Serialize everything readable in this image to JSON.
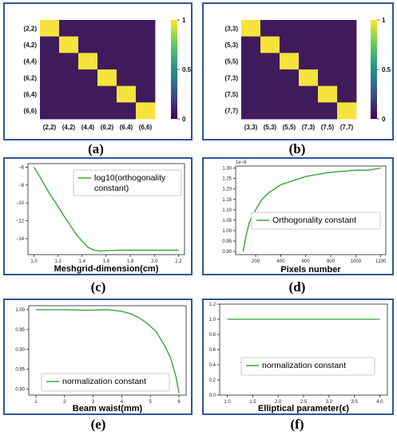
{
  "panels": [
    {
      "caption": "(a)"
    },
    {
      "caption": "(b)"
    },
    {
      "caption": "(c)"
    },
    {
      "caption": "(d)"
    },
    {
      "caption": "(e)"
    },
    {
      "caption": "(f)"
    }
  ],
  "colors": {
    "border": "#2f5597",
    "low": "#3f1b5c",
    "high": "#f6e33d",
    "line": "#2ca02c",
    "cbar": [
      "#440154",
      "#3b528b",
      "#21918c",
      "#5ec962",
      "#fde725"
    ]
  },
  "chart_data": [
    {
      "type": "heatmap",
      "row_labels": [
        "(2,2)",
        "(4,2)",
        "(4,4)",
        "(6,2)",
        "(6,4)",
        "(6,6)"
      ],
      "col_labels": [
        "(2,2)",
        "(4,2)",
        "(4,4)",
        "(6,2)",
        "(6,4)",
        "(6,6)"
      ],
      "values": [
        [
          1,
          0,
          0,
          0,
          0,
          0
        ],
        [
          0,
          1,
          0,
          0,
          0,
          0
        ],
        [
          0,
          0,
          1,
          0,
          0,
          0
        ],
        [
          0,
          0,
          0,
          1,
          0,
          0
        ],
        [
          0,
          0,
          0,
          0,
          1,
          0
        ],
        [
          0,
          0,
          0,
          0,
          0,
          1
        ]
      ],
      "colorbar_ticks": [
        "1",
        "0.5",
        "0"
      ]
    },
    {
      "type": "heatmap",
      "row_labels": [
        "(3,3)",
        "(5,3)",
        "(5,5)",
        "(7,3)",
        "(7,5)",
        "(7,7)"
      ],
      "col_labels": [
        "(3,3)",
        "(5,3)",
        "(5,5)",
        "(7,3)",
        "(7,5)",
        "(7,7)"
      ],
      "values": [
        [
          1,
          0,
          0,
          0,
          0,
          0
        ],
        [
          0,
          1,
          0,
          0,
          0,
          0
        ],
        [
          0,
          0,
          1,
          0,
          0,
          0
        ],
        [
          0,
          0,
          0,
          1,
          0,
          0
        ],
        [
          0,
          0,
          0,
          0,
          1,
          0
        ],
        [
          0,
          0,
          0,
          0,
          0,
          1
        ]
      ],
      "colorbar_ticks": [
        "1",
        "0.5",
        "0"
      ]
    },
    {
      "type": "line",
      "xlabel": "Meshgrid-dimension(cm)",
      "legend": "log10(orthogonality constant)",
      "legend_lines": [
        "log10(orthogonality",
        "constant)"
      ],
      "legend_position": "top-right",
      "xlim": [
        0.95,
        2.25
      ],
      "ylim": [
        -15.8,
        -5.6
      ],
      "xticks": [
        1.0,
        1.2,
        1.4,
        1.6,
        1.8,
        2.0,
        2.2
      ],
      "xtick_labels": [
        "1.0",
        "1.2",
        "1.4",
        "1.6",
        "1.8",
        "2.0",
        "2.2"
      ],
      "yticks": [
        -6,
        -8,
        -10,
        -12,
        -14
      ],
      "ytick_labels": [
        "−6",
        "−8",
        "−10",
        "−12",
        "−14"
      ],
      "x": [
        1.0,
        1.05,
        1.1,
        1.15,
        1.2,
        1.25,
        1.3,
        1.35,
        1.4,
        1.45,
        1.5,
        1.55,
        1.6,
        1.7,
        1.8,
        1.9,
        2.0,
        2.1,
        2.2
      ],
      "y": [
        -6.0,
        -7.1,
        -8.3,
        -9.4,
        -10.4,
        -11.5,
        -12.5,
        -13.5,
        -14.3,
        -15.0,
        -15.3,
        -15.4,
        -15.35,
        -15.3,
        -15.3,
        -15.3,
        -15.3,
        -15.3,
        -15.3
      ]
    },
    {
      "type": "line",
      "xlabel": "Pixels number",
      "legend": "Orthogonality constant",
      "legend_position": "center-right",
      "offset_text": "1e−6",
      "xlim": [
        40,
        1240
      ],
      "ylim": [
        0.885,
        1.31
      ],
      "xticks": [
        200,
        400,
        600,
        800,
        1000,
        1200
      ],
      "xtick_labels": [
        "200",
        "400",
        "600",
        "800",
        "1000",
        "1200"
      ],
      "yticks": [
        0.9,
        0.95,
        1.0,
        1.05,
        1.1,
        1.15,
        1.2,
        1.25,
        1.3
      ],
      "ytick_labels": [
        "0.90",
        "0.95",
        "1.00",
        "1.05",
        "1.10",
        "1.15",
        "1.20",
        "1.25",
        "1.30"
      ],
      "x": [
        100,
        125,
        150,
        200,
        250,
        300,
        350,
        400,
        500,
        600,
        700,
        800,
        900,
        1000,
        1100,
        1200
      ],
      "y": [
        0.9,
        0.98,
        1.04,
        1.1,
        1.15,
        1.18,
        1.2,
        1.22,
        1.24,
        1.26,
        1.27,
        1.28,
        1.285,
        1.29,
        1.29,
        1.3
      ]
    },
    {
      "type": "line",
      "xlabel": "Beam waist(mm)",
      "legend": "normalization constant",
      "legend_position": "lower-center",
      "xlim": [
        0.75,
        6.25
      ],
      "ylim": [
        0.785,
        1.01
      ],
      "xticks": [
        1,
        2,
        3,
        4,
        5,
        6
      ],
      "xtick_labels": [
        "1",
        "2",
        "3",
        "4",
        "5",
        "6"
      ],
      "yticks": [
        0.8,
        0.85,
        0.9,
        0.95,
        1.0
      ],
      "ytick_labels": [
        "0.80",
        "0.85",
        "0.90",
        "0.95",
        "1.00"
      ],
      "x": [
        1.0,
        1.5,
        2.0,
        2.5,
        3.0,
        3.5,
        4.0,
        4.3,
        4.6,
        4.9,
        5.2,
        5.5,
        5.7,
        5.9,
        6.0
      ],
      "y": [
        1.0,
        1.0,
        1.0,
        0.999,
        0.999,
        1.0,
        0.996,
        0.99,
        0.98,
        0.965,
        0.945,
        0.91,
        0.88,
        0.83,
        0.79
      ]
    },
    {
      "type": "line",
      "xlabel": "Elliptical parameter(ϵ)",
      "legend": "normalization constant",
      "legend_position": "center",
      "xlim": [
        0.85,
        4.15
      ],
      "ylim": [
        0,
        1.2
      ],
      "xticks": [
        1.0,
        1.5,
        2.0,
        2.5,
        3.0,
        3.5,
        4.0
      ],
      "xtick_labels": [
        "1.0",
        "1.5",
        "2.0",
        "2.5",
        "3.0",
        "3.5",
        "4.0"
      ],
      "yticks": [
        0,
        0.2,
        0.4,
        0.6,
        0.8,
        1.0,
        1.2
      ],
      "ytick_labels": [
        "0.0",
        "0.2",
        "0.4",
        "0.6",
        "0.8",
        "1.0",
        "1.2"
      ],
      "x": [
        1.0,
        4.0
      ],
      "y": [
        1.0,
        1.0
      ]
    }
  ]
}
